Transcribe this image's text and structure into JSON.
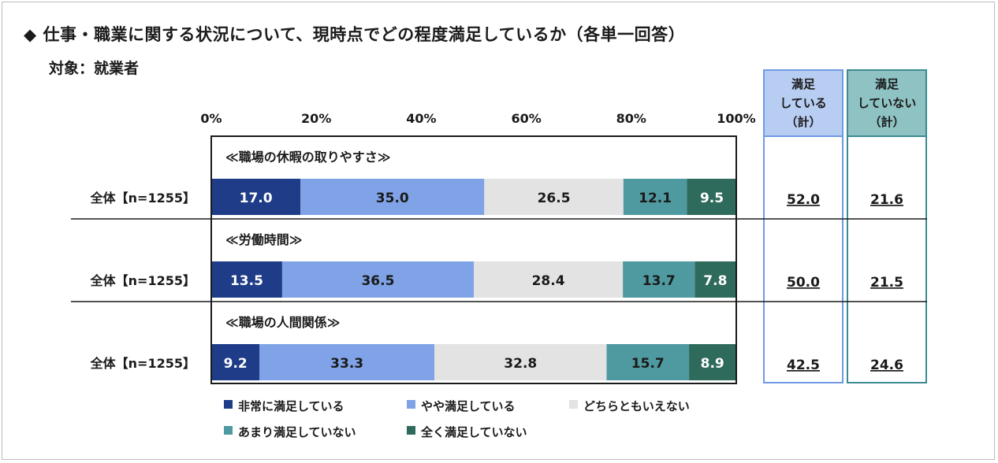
{
  "title": "◆ 仕事・職業に関する状況について、現時点でどの程度満足しているか（各単一回答）",
  "subtitle": "対象：就業者",
  "chart_data": {
    "type": "bar",
    "stacked": true,
    "orientation": "horizontal",
    "xlim": [
      0,
      100
    ],
    "x_ticks": [
      "0%",
      "20%",
      "40%",
      "60%",
      "80%",
      "100%"
    ],
    "sections": [
      {
        "title": "≪職場の休暇の取りやすさ≫",
        "row_label": "全体【n=1255】",
        "values": [
          17.0,
          35.0,
          26.5,
          12.1,
          9.5
        ],
        "satisfied_total": "52.0",
        "unsatisfied_total": "21.6"
      },
      {
        "title": "≪労働時間≫",
        "row_label": "全体【n=1255】",
        "values": [
          13.5,
          36.5,
          28.4,
          13.7,
          7.8
        ],
        "satisfied_total": "50.0",
        "unsatisfied_total": "21.5"
      },
      {
        "title": "≪職場の人間関係≫",
        "row_label": "全体【n=1255】",
        "values": [
          9.2,
          33.3,
          32.8,
          15.7,
          8.9
        ],
        "satisfied_total": "42.5",
        "unsatisfied_total": "24.6"
      }
    ],
    "series": [
      {
        "name": "非常に満足している",
        "color": "#1f3c88",
        "text_color": "#ffffff"
      },
      {
        "name": "やや満足している",
        "color": "#7fa3e6",
        "text_color": "#1a1a1a"
      },
      {
        "name": "どちらともいえない",
        "color": "#e3e3e3",
        "text_color": "#1a1a1a"
      },
      {
        "name": "あまり満足していない",
        "color": "#4f9aa0",
        "text_color": "#1a1a1a"
      },
      {
        "name": "全く満足していない",
        "color": "#2f6b5c",
        "text_color": "#ffffff"
      }
    ],
    "summary_columns": [
      {
        "header": [
          "満足",
          "している",
          "（計）"
        ],
        "border_color": "#6f9ae3",
        "fill_color": "#b8cdf2"
      },
      {
        "header": [
          "満足",
          "していない",
          "（計）"
        ],
        "border_color": "#3d8b91",
        "fill_color": "#8fc2c3"
      }
    ]
  }
}
